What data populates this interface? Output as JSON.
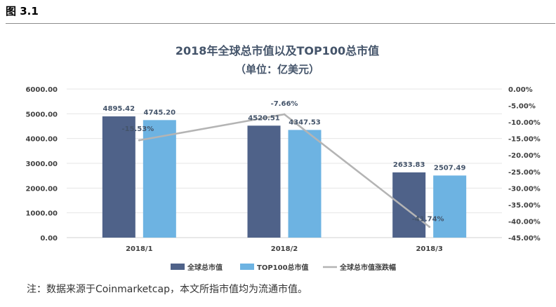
{
  "figure": {
    "label": "图 3.1",
    "note": "注：数据来源于Coinmarketcap，本文所指市值均为流通市值。"
  },
  "chart_data": {
    "type": "bar",
    "title": "2018年全球总市值以及TOP100总市值",
    "subtitle": "（单位：亿美元）",
    "categories": [
      "2018/1",
      "2018/2",
      "2018/3"
    ],
    "series": [
      {
        "name": "全球总市值",
        "type": "bar",
        "axis": "left",
        "color": "#4f6289",
        "values": [
          4895.42,
          4520.51,
          2633.83
        ]
      },
      {
        "name": "TOP100总市值",
        "type": "bar",
        "axis": "left",
        "color": "#6db3e2",
        "values": [
          4745.2,
          4347.53,
          2507.49
        ]
      },
      {
        "name": "全球总市值涨跌幅",
        "type": "line",
        "axis": "right",
        "color": "#b4b4b4",
        "values": [
          -15.53,
          -7.66,
          -41.74
        ]
      }
    ],
    "bar_labels": [
      [
        "4895.42",
        "4520.51",
        "2633.83"
      ],
      [
        "4745.20",
        "4347.53",
        "2507.49"
      ]
    ],
    "line_labels": [
      "-15.53%",
      "-7.66%",
      "-41.74%"
    ],
    "left_axis": {
      "ylim": [
        0,
        6000
      ],
      "ticks": [
        "0.00",
        "1000.00",
        "2000.00",
        "3000.00",
        "4000.00",
        "5000.00",
        "6000.00"
      ]
    },
    "right_axis": {
      "ylim": [
        -45,
        0
      ],
      "ticks": [
        "0.00%",
        "-5.00%",
        "-10.00%",
        "-15.00%",
        "-20.00%",
        "-25.00%",
        "-30.00%",
        "-35.00%",
        "-40.00%",
        "-45.00%"
      ]
    },
    "grid": true,
    "legend_position": "bottom"
  }
}
